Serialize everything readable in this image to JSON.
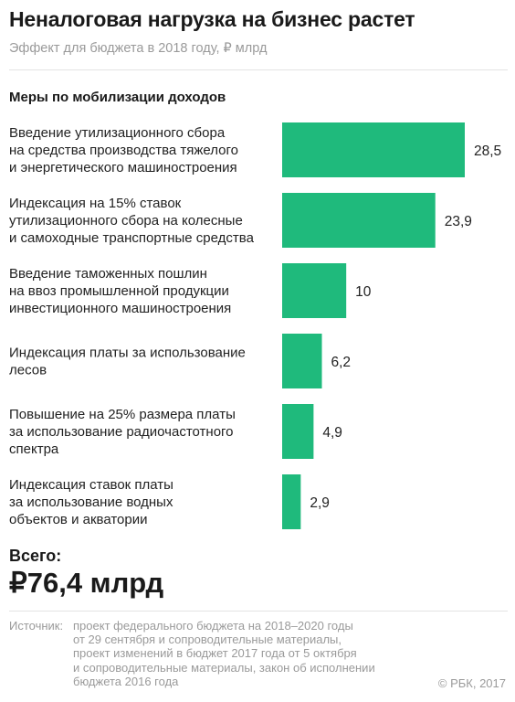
{
  "title": "Неналоговая нагрузка на бизнес растет",
  "subtitle": "Эффект для бюджета в 2018 году, ₽ млрд",
  "section_title": "Меры по мобилизации доходов",
  "chart_data": {
    "type": "bar",
    "orientation": "horizontal",
    "categories": [
      [
        "Введение утилизационного сбора",
        "на средства производства тяжелого",
        "и энергетического машиностроения"
      ],
      [
        "Индексация на 15% ставок",
        "утилизационного сбора на колесные",
        "и самоходные транспортные средства"
      ],
      [
        "Введение таможенных пошлин",
        "на ввоз промышленной продукции",
        "инвестиционного машиностроения"
      ],
      [
        "Индексация платы за использование",
        "лесов"
      ],
      [
        "Повышение на 25% размера платы",
        "за использование радиочастотного",
        "спектра"
      ],
      [
        "Индексация ставок платы",
        "за использование водных",
        "объектов и акватории"
      ]
    ],
    "values": [
      28.5,
      23.9,
      10,
      6.2,
      4.9,
      2.9
    ],
    "value_labels": [
      "28,5",
      "23,9",
      "10",
      "6,2",
      "4,9",
      "2,9"
    ],
    "bar_color": "#1fba7c",
    "grid": false,
    "xlim": [
      0,
      28.5
    ]
  },
  "total": {
    "label": "Всего:",
    "value": "₽76,4 млрд"
  },
  "source": {
    "label": "Источник:",
    "lines": [
      "проект федерального бюджета на 2018–2020 годы",
      "от 29 сентября и сопроводительные материалы,",
      "проект изменений в бюджет 2017 года от 5 октября",
      "и сопроводительные материалы, закон об исполнении",
      "бюджета 2016 года"
    ]
  },
  "copyright": "© РБК, 2017"
}
